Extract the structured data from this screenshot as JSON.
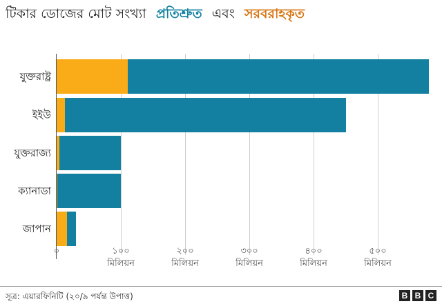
{
  "title": {
    "prefix": "টিকার ডোজের মোট সংখ্যা",
    "committed_label": "প্রতিশ্রুত",
    "and": "এবং",
    "delivered_label": "সরবরাহকৃত"
  },
  "colors": {
    "committed": "#1380A1",
    "delivered": "#FAAB18",
    "committed_text": "#1380A1",
    "delivered_text": "#D87514"
  },
  "axis": {
    "ticks": [
      {
        "value": "০",
        "unit": ""
      },
      {
        "value": "১০০",
        "unit": "মিলিয়ন"
      },
      {
        "value": "২০০",
        "unit": "মিলিয়ন"
      },
      {
        "value": "৩০০",
        "unit": "মিলিয়ন"
      },
      {
        "value": "৪০০",
        "unit": "মিলিয়ন"
      },
      {
        "value": "৫০০",
        "unit": "মিলিয়ন"
      }
    ]
  },
  "footer": {
    "source": "সূত্র: এয়ারফিনিটি (২০/৯ পর্যন্ত উপাত্ত)",
    "logo": [
      "B",
      "B",
      "C"
    ]
  },
  "chart_data": {
    "type": "bar",
    "orientation": "horizontal",
    "title": "টিকার ডোজের মোট সংখ্যা প্রতিশ্রুত এবং সরবরাহকৃত",
    "categories": [
      "যুক্তরাষ্ট্র",
      "ইইউ",
      "যুক্তরাজ্য",
      "ক্যানাডা",
      "জাপান"
    ],
    "series": [
      {
        "name": "প্রতিশ্রুত",
        "values": [
          580,
          450,
          100,
          100,
          30
        ]
      },
      {
        "name": "সরবরাহকৃত",
        "values": [
          111,
          13,
          4,
          0.5,
          16
        ]
      }
    ],
    "xlabel": "",
    "ylabel": "",
    "xlim": [
      0,
      590
    ],
    "tick_labels": [
      "০",
      "১০০ মিলিয়ন",
      "২০০ মিলিয়ন",
      "৩০০ মিলিয়ন",
      "৪০০ মিলিয়ন",
      "৫০০ মিলিয়ন"
    ],
    "grid": true,
    "legend": "in title"
  }
}
